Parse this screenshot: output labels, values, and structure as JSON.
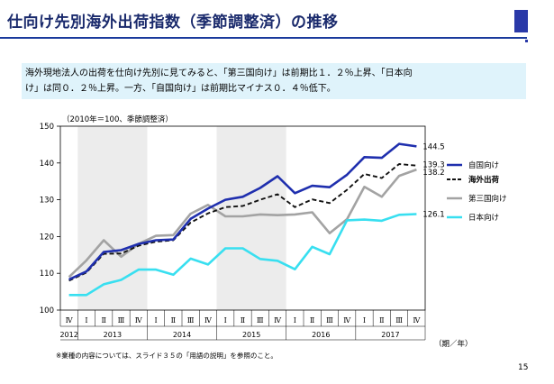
{
  "title": "仕向け先別海外出荷指数（季節調整済）の推移",
  "summary_lines": [
    "海外現地法人の出荷を仕向け先別に見てみると、「第三国向け」は前期比１．２％上昇、「日本向",
    "け」は同０．２％上昇。一方、「自国向け」は前期比マイナス０．４％低下。"
  ],
  "footnote": "※業種の内容については、スライド３５の「用語の説明」を参照のこと。",
  "page_number": "15",
  "chart_data": {
    "type": "line",
    "note": "（2010年＝100、季節調整済）",
    "x_unit_label": "（期／年）",
    "quarters": [
      "Ⅳ",
      "Ⅰ",
      "Ⅱ",
      "Ⅲ",
      "Ⅳ",
      "Ⅰ",
      "Ⅱ",
      "Ⅲ",
      "Ⅳ",
      "Ⅰ",
      "Ⅱ",
      "Ⅲ",
      "Ⅳ",
      "Ⅰ",
      "Ⅱ",
      "Ⅲ",
      "Ⅳ",
      "Ⅰ",
      "Ⅱ",
      "Ⅲ",
      "Ⅳ"
    ],
    "years": [
      {
        "label": "2012",
        "start": 0,
        "end": 0
      },
      {
        "label": "2013",
        "start": 1,
        "end": 4
      },
      {
        "label": "2014",
        "start": 5,
        "end": 8
      },
      {
        "label": "2015",
        "start": 9,
        "end": 12
      },
      {
        "label": "2016",
        "start": 13,
        "end": 16
      },
      {
        "label": "2017",
        "start": 17,
        "end": 20
      }
    ],
    "shaded_years": [
      1,
      3
    ],
    "ylim": [
      100,
      150
    ],
    "yticks": [
      100,
      110,
      120,
      130,
      140,
      150
    ],
    "series": [
      {
        "name": "自国向け",
        "color": "#1f2fae",
        "dash": "",
        "width": 2.6,
        "end_label": "144.5",
        "values": [
          108.3,
          110.5,
          115.8,
          116.3,
          118.0,
          119.0,
          119.2,
          124.8,
          127.6,
          130.0,
          130.8,
          133.2,
          136.4,
          131.8,
          133.8,
          133.4,
          136.8,
          141.6,
          141.4,
          145.2,
          144.5
        ]
      },
      {
        "name": "海外出荷",
        "color": "#111111",
        "dash": "5,3",
        "width": 1.9,
        "end_label": "139.3",
        "values": [
          108.0,
          110.2,
          115.3,
          115.4,
          117.5,
          118.6,
          119.0,
          123.8,
          126.3,
          128.0,
          128.3,
          130.0,
          131.5,
          128.0,
          130.1,
          129.1,
          132.7,
          137.0,
          135.9,
          139.7,
          139.3
        ]
      },
      {
        "name": "第三国向け",
        "color": "#a3a3a3",
        "dash": "",
        "width": 2.6,
        "end_label": "138.2",
        "values": [
          109.0,
          113.5,
          119.0,
          114.5,
          118.0,
          120.2,
          120.4,
          126.2,
          128.6,
          125.5,
          125.5,
          126.0,
          125.8,
          126.0,
          126.6,
          120.9,
          124.7,
          133.5,
          130.8,
          136.5,
          138.2
        ]
      },
      {
        "name": "日本向け",
        "color": "#38dff0",
        "dash": "",
        "width": 2.6,
        "end_label": "126.1",
        "values": [
          104.1,
          104.1,
          107.0,
          108.2,
          111.0,
          111.0,
          109.6,
          114.0,
          112.4,
          116.8,
          116.8,
          113.9,
          113.4,
          111.1,
          117.2,
          115.2,
          124.4,
          124.6,
          124.3,
          125.9,
          126.1
        ]
      }
    ]
  }
}
